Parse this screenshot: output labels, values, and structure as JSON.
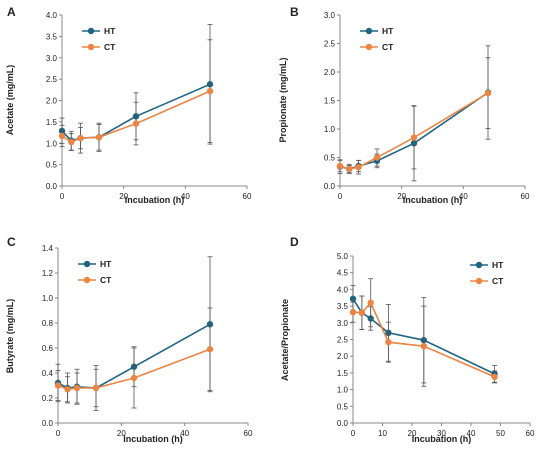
{
  "colors": {
    "HT": "#1f6582",
    "CT": "#ea8544",
    "error_bar": "#555555",
    "axis": "#888888"
  },
  "chart_data": [
    {
      "panel": "A",
      "type": "line",
      "xlabel": "Incubation (h)",
      "ylabel": "Acetate (mg/mL)",
      "xlim": [
        0,
        60
      ],
      "xticks": [
        0,
        20,
        40,
        60
      ],
      "ylim": [
        0,
        4.0
      ],
      "yticks": [
        "0.0",
        "0.5",
        "1.0",
        "1.5",
        "2.0",
        "2.5",
        "3.0",
        "3.5",
        "4.0"
      ],
      "legend": "top-left",
      "x": [
        0,
        3,
        6,
        12,
        24,
        48
      ],
      "series": [
        {
          "name": "HT",
          "values": [
            1.29,
            1.06,
            1.12,
            1.14,
            1.63,
            2.38
          ],
          "errors": [
            0.3,
            0.22,
            0.35,
            0.33,
            0.55,
            1.4
          ]
        },
        {
          "name": "CT",
          "values": [
            1.17,
            1.03,
            1.12,
            1.14,
            1.46,
            2.22
          ],
          "errors": [
            0.25,
            0.2,
            0.25,
            0.3,
            0.5,
            1.2
          ]
        }
      ]
    },
    {
      "panel": "B",
      "type": "line",
      "xlabel": "Incubation (h)",
      "ylabel": "Propionate (mg/mL)",
      "xlim": [
        0,
        60
      ],
      "xticks": [
        0,
        20,
        40,
        60
      ],
      "ylim": [
        0,
        3.0
      ],
      "yticks": [
        "0.0",
        "0.5",
        "1.0",
        "1.5",
        "2.0",
        "2.5",
        "3.0"
      ],
      "legend": "top-left",
      "x": [
        0,
        3,
        6,
        12,
        24,
        48
      ],
      "series": [
        {
          "name": "HT",
          "values": [
            0.34,
            0.3,
            0.35,
            0.44,
            0.75,
            1.64
          ],
          "errors": [
            0.12,
            0.06,
            0.1,
            0.12,
            0.66,
            0.82
          ]
        },
        {
          "name": "CT",
          "values": [
            0.35,
            0.3,
            0.33,
            0.5,
            0.85,
            1.63
          ],
          "errors": [
            0.1,
            0.08,
            0.12,
            0.15,
            0.55,
            0.62
          ]
        }
      ]
    },
    {
      "panel": "C",
      "type": "line",
      "xlabel": "Incubation (h)",
      "ylabel": "Butyrate (mg/mL)",
      "xlim": [
        0,
        60
      ],
      "xticks": [
        0,
        20,
        40,
        60
      ],
      "ylim": [
        0,
        1.4
      ],
      "yticks": [
        "0.0",
        "0.2",
        "0.4",
        "0.6",
        "0.8",
        "1.0",
        "1.2",
        "1.4"
      ],
      "legend": "top-left",
      "x": [
        0,
        3,
        6,
        12,
        24,
        48
      ],
      "series": [
        {
          "name": "HT",
          "values": [
            0.32,
            0.28,
            0.29,
            0.28,
            0.45,
            0.79
          ],
          "errors": [
            0.15,
            0.12,
            0.14,
            0.18,
            0.16,
            0.54
          ]
        },
        {
          "name": "CT",
          "values": [
            0.3,
            0.27,
            0.28,
            0.28,
            0.36,
            0.59
          ],
          "errors": [
            0.12,
            0.1,
            0.12,
            0.15,
            0.24,
            0.33
          ]
        }
      ]
    },
    {
      "panel": "D",
      "type": "line",
      "xlabel": "Incubation (h)",
      "ylabel": "Acetate/Propionate",
      "xlim": [
        0,
        60
      ],
      "xticks": [
        0,
        10,
        20,
        30,
        40,
        50,
        60
      ],
      "ylim": [
        0,
        5.0
      ],
      "yticks": [
        "0.0",
        "0.5",
        "1.0",
        "1.5",
        "2.0",
        "2.5",
        "3.0",
        "3.5",
        "4.0",
        "4.5",
        "5.0"
      ],
      "legend": "top-right",
      "x": [
        0,
        3,
        6,
        12,
        24,
        48
      ],
      "series": [
        {
          "name": "HT",
          "values": [
            3.72,
            3.3,
            3.13,
            2.7,
            2.48,
            1.47
          ],
          "errors": [
            0.4,
            0.5,
            0.35,
            0.85,
            1.28,
            0.25
          ]
        },
        {
          "name": "CT",
          "values": [
            3.32,
            3.3,
            3.6,
            2.42,
            2.3,
            1.38
          ],
          "errors": [
            0.3,
            0.5,
            0.72,
            0.6,
            1.2,
            0.18
          ]
        }
      ]
    }
  ]
}
